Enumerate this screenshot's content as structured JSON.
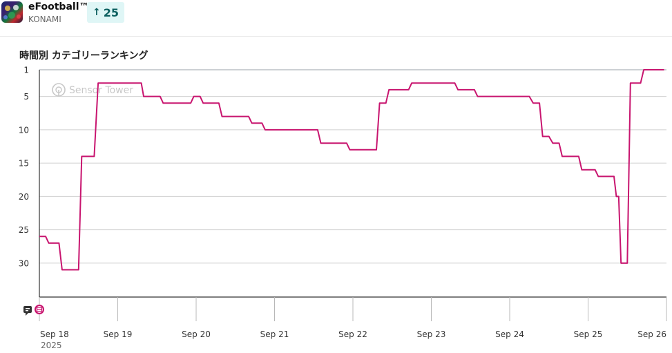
{
  "app": {
    "name": "eFootball™",
    "publisher": "KONAMI",
    "rank_change": "25",
    "icon": "efootball-app-icon"
  },
  "chart_title": "時間別 カテゴリーランキング",
  "watermark": "Sensor Tower",
  "colors": {
    "line": "#c8156f",
    "grid": "#d0d0d0",
    "axis": "#333333"
  },
  "chart_data": {
    "type": "line",
    "title": "時間別 カテゴリーランキング",
    "y_axis": {
      "inverted": true,
      "range": [
        1,
        35
      ],
      "ticks": [
        1,
        5,
        10,
        15,
        20,
        25,
        30
      ]
    },
    "x_axis": {
      "range": [
        0,
        8.0
      ],
      "unit": "days from Sep 18",
      "ticks": [
        {
          "x": 0,
          "label": "Sep 18",
          "sub": "2025"
        },
        {
          "x": 1,
          "label": "Sep 19"
        },
        {
          "x": 2,
          "label": "Sep 20"
        },
        {
          "x": 3,
          "label": "Sep 21"
        },
        {
          "x": 4,
          "label": "Sep 22"
        },
        {
          "x": 5,
          "label": "Sep 23"
        },
        {
          "x": 6,
          "label": "Sep 24"
        },
        {
          "x": 7,
          "label": "Sep 25"
        },
        {
          "x": 8,
          "label": "Sep 26"
        }
      ]
    },
    "grid": true,
    "series": [
      {
        "points": [
          [
            0.0,
            26
          ],
          [
            0.08,
            26
          ],
          [
            0.12,
            27
          ],
          [
            0.25,
            27
          ],
          [
            0.29,
            31
          ],
          [
            0.5,
            31
          ],
          [
            0.54,
            14
          ],
          [
            0.7,
            14
          ],
          [
            0.75,
            3
          ],
          [
            1.3,
            3
          ],
          [
            1.33,
            5
          ],
          [
            1.54,
            5
          ],
          [
            1.58,
            6
          ],
          [
            1.93,
            6
          ],
          [
            1.97,
            5
          ],
          [
            2.05,
            5
          ],
          [
            2.09,
            6
          ],
          [
            2.29,
            6
          ],
          [
            2.33,
            8
          ],
          [
            2.67,
            8
          ],
          [
            2.71,
            9
          ],
          [
            2.84,
            9
          ],
          [
            2.88,
            10
          ],
          [
            3.55,
            10
          ],
          [
            3.59,
            12
          ],
          [
            3.92,
            12
          ],
          [
            3.96,
            13
          ],
          [
            4.3,
            13
          ],
          [
            4.34,
            6
          ],
          [
            4.42,
            6
          ],
          [
            4.46,
            4
          ],
          [
            4.71,
            4
          ],
          [
            4.75,
            3
          ],
          [
            5.3,
            3
          ],
          [
            5.34,
            4
          ],
          [
            5.55,
            4
          ],
          [
            5.59,
            5
          ],
          [
            6.25,
            5
          ],
          [
            6.3,
            6
          ],
          [
            6.38,
            6
          ],
          [
            6.42,
            11
          ],
          [
            6.5,
            11
          ],
          [
            6.55,
            12
          ],
          [
            6.63,
            12
          ],
          [
            6.67,
            14
          ],
          [
            6.88,
            14
          ],
          [
            6.92,
            16
          ],
          [
            7.09,
            16
          ],
          [
            7.13,
            17
          ],
          [
            7.33,
            17
          ],
          [
            7.36,
            20
          ],
          [
            7.39,
            20
          ],
          [
            7.42,
            30
          ],
          [
            7.5,
            30
          ],
          [
            7.54,
            3
          ],
          [
            7.67,
            3
          ],
          [
            7.71,
            1
          ],
          [
            7.97,
            1
          ]
        ]
      }
    ],
    "event_icons": [
      "comment-icon",
      "update-icon"
    ]
  }
}
